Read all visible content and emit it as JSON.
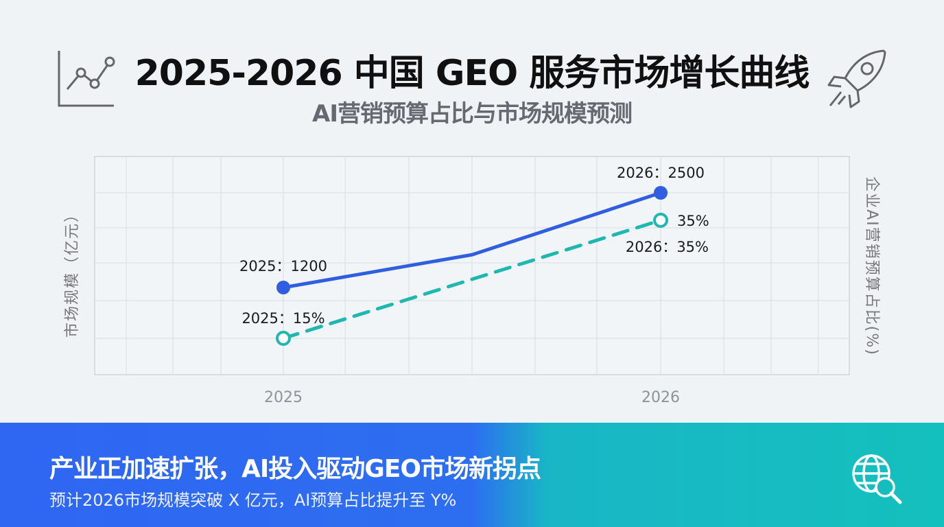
{
  "header": {
    "title": "2025-2026 中国 GEO 服务市场增长曲线",
    "subtitle": "AI营销预算占比与市场规模预测",
    "left_icon": "trend-line-icon",
    "right_icon": "rocket-icon"
  },
  "chart_data": {
    "type": "line",
    "x_ticks": [
      "2025",
      "2026"
    ],
    "ylabel": "市场规模（亿元）",
    "y2label": "企业AI营销预算占比(%)",
    "grid": true,
    "legend": "none",
    "series": [
      {
        "axis": "left",
        "style": "solid",
        "color": "#2f5fe0",
        "points": [
          {
            "x": 2025.0,
            "y": 1200,
            "label": "2025：1200"
          },
          {
            "x": 2025.5,
            "y": 1650
          },
          {
            "x": 2026.0,
            "y": 2500,
            "label": "2026：2500"
          }
        ]
      },
      {
        "axis": "right",
        "style": "dashed",
        "color": "#1fb8b0",
        "points": [
          {
            "x": 2025.0,
            "y": 15,
            "label": "2025：15%"
          },
          {
            "x": 2026.0,
            "y": 35,
            "label": "2026：35%"
          }
        ],
        "end_annotation": "35%"
      }
    ]
  },
  "footer": {
    "headline": "产业正加速扩张，AI投入驱动GEO市场新拐点",
    "subline": "预计2026市场规模突破 X 亿元，AI预算占比提升至 Y%",
    "icon": "globe-search-icon"
  }
}
